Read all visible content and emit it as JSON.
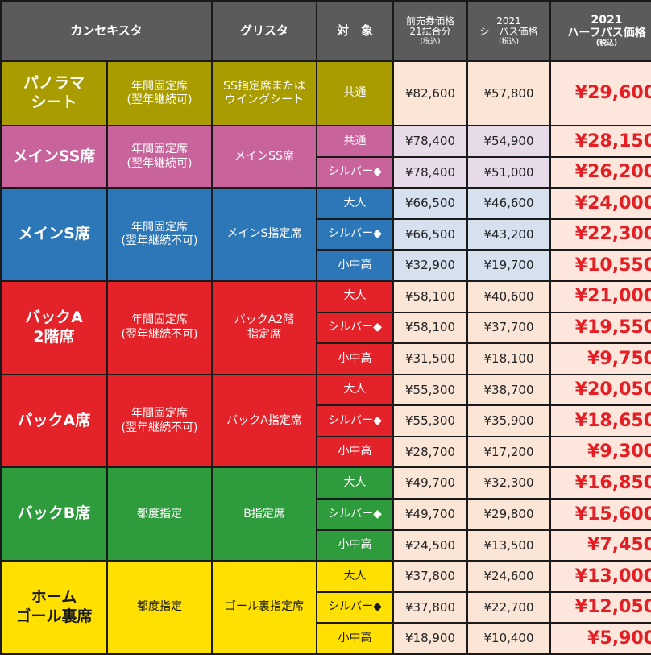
{
  "headers": {
    "col1": "カンセキスタ",
    "col2": "グリスタ",
    "col3": "対　象",
    "col4_line1": "前売券価格",
    "col4_line2": "21試合分",
    "col4_tax": "(税込)",
    "col5_line1": "2021",
    "col5_line2": "シーパス価格",
    "col5_tax": "(税込)",
    "col6_line1": "2021",
    "col6_line2": "ハーフパス価格",
    "col6_tax": "(税込)"
  },
  "colors": {
    "header": "#5b5b5b",
    "panorama": "#a89c00",
    "main_ss": "#c8649b",
    "main_s": "#2c77b8",
    "back_a": "#e4222a",
    "back_b": "#2e9b3c",
    "home_goal": "#ffe000",
    "half_price_text": "#e31e24"
  },
  "sections": [
    {
      "id": "panorama",
      "name": "パノラマ\nシート",
      "kanseki": "年間固定席\n(翌年継続可)",
      "gurisuta": "SS指定席または\nウイングシート",
      "rows": [
        {
          "type": "共通",
          "advance": "¥82,600",
          "season": "¥57,800",
          "half": "¥29,600"
        }
      ]
    },
    {
      "id": "main_ss",
      "name": "メインSS席",
      "kanseki": "年間固定席\n(翌年継続可)",
      "gurisuta": "メインSS席",
      "rows": [
        {
          "type": "共通",
          "advance": "¥78,400",
          "season": "¥54,900",
          "half": "¥28,150"
        },
        {
          "type": "シルバー◆",
          "advance": "¥78,400",
          "season": "¥51,000",
          "half": "¥26,200"
        }
      ]
    },
    {
      "id": "main_s",
      "name": "メインS席",
      "kanseki": "年間固定席\n(翌年継続不可)",
      "gurisuta": "メインS指定席",
      "rows": [
        {
          "type": "大人",
          "advance": "¥66,500",
          "season": "¥46,600",
          "half": "¥24,000"
        },
        {
          "type": "シルバー◆",
          "advance": "¥66,500",
          "season": "¥43,200",
          "half": "¥22,300"
        },
        {
          "type": "小中高",
          "advance": "¥32,900",
          "season": "¥19,700",
          "half": "¥10,550"
        }
      ]
    },
    {
      "id": "back_a2",
      "name": "バックA\n2階席",
      "kanseki": "年間固定席\n(翌年継続不可)",
      "gurisuta": "バックA2階\n指定席",
      "rows": [
        {
          "type": "大人",
          "advance": "¥58,100",
          "season": "¥40,600",
          "half": "¥21,000"
        },
        {
          "type": "シルバー◆",
          "advance": "¥58,100",
          "season": "¥37,700",
          "half": "¥19,550"
        },
        {
          "type": "小中高",
          "advance": "¥31,500",
          "season": "¥18,100",
          "half": "¥9,750"
        }
      ]
    },
    {
      "id": "back_a",
      "name": "バックA席",
      "kanseki": "年間固定席\n(翌年継続不可)",
      "gurisuta": "バックA指定席",
      "rows": [
        {
          "type": "大人",
          "advance": "¥55,300",
          "season": "¥38,700",
          "half": "¥20,050"
        },
        {
          "type": "シルバー◆",
          "advance": "¥55,300",
          "season": "¥35,900",
          "half": "¥18,650"
        },
        {
          "type": "小中高",
          "advance": "¥28,700",
          "season": "¥17,200",
          "half": "¥9,300"
        }
      ]
    },
    {
      "id": "back_b",
      "name": "バックB席",
      "kanseki": "都度指定",
      "gurisuta": "B指定席",
      "rows": [
        {
          "type": "大人",
          "advance": "¥49,700",
          "season": "¥32,300",
          "half": "¥16,850"
        },
        {
          "type": "シルバー◆",
          "advance": "¥49,700",
          "season": "¥29,800",
          "half": "¥15,600"
        },
        {
          "type": "小中高",
          "advance": "¥24,500",
          "season": "¥13,500",
          "half": "¥7,450"
        }
      ]
    },
    {
      "id": "home_goal",
      "name": "ホーム\nゴール裏席",
      "kanseki": "都度指定",
      "gurisuta": "ゴール裏指定席",
      "rows": [
        {
          "type": "大人",
          "advance": "¥37,800",
          "season": "¥24,600",
          "half": "¥13,000"
        },
        {
          "type": "シルバー◆",
          "advance": "¥37,800",
          "season": "¥22,700",
          "half": "¥12,050"
        },
        {
          "type": "小中高",
          "advance": "¥18,900",
          "season": "¥10,400",
          "half": "¥5,900"
        }
      ]
    }
  ]
}
